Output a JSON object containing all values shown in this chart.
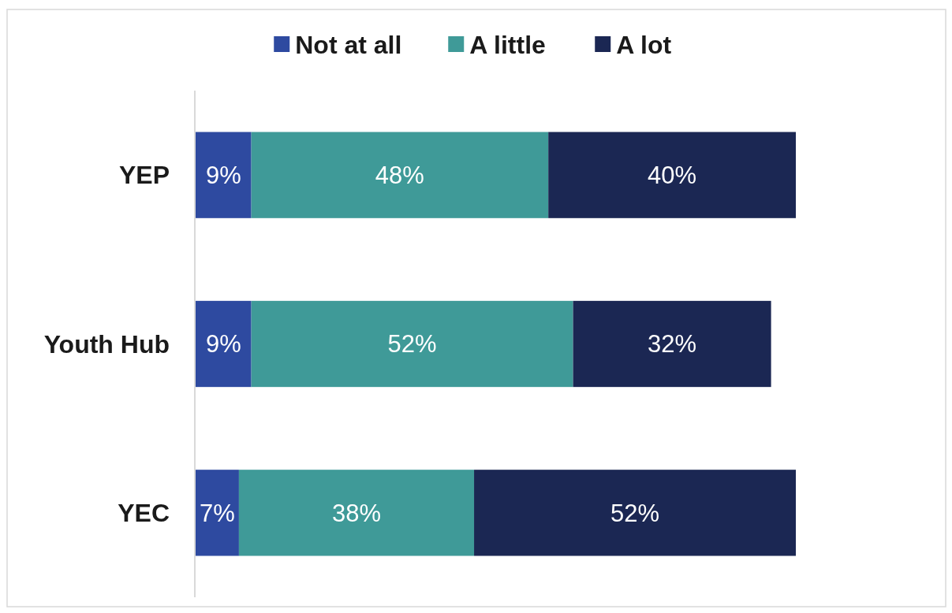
{
  "chart_data": {
    "type": "bar",
    "orientation": "horizontal",
    "stacked": true,
    "categories": [
      "YEP",
      "Youth Hub",
      "YEC"
    ],
    "legend": "top",
    "tick_labels": "y",
    "series": [
      {
        "name": "Not at all",
        "color": "#2e4aa0",
        "values": [
          9,
          9,
          7
        ],
        "value_labels": [
          "9%",
          "9%",
          "7%"
        ]
      },
      {
        "name": "A little",
        "color": "#3f9a98",
        "values": [
          48,
          52,
          38
        ],
        "value_labels": [
          "48%",
          "52%",
          "38%"
        ]
      },
      {
        "name": "A lot",
        "color": "#1b2753",
        "values": [
          40,
          32,
          52
        ],
        "value_labels": [
          "40%",
          "32%",
          "52%"
        ]
      }
    ]
  }
}
